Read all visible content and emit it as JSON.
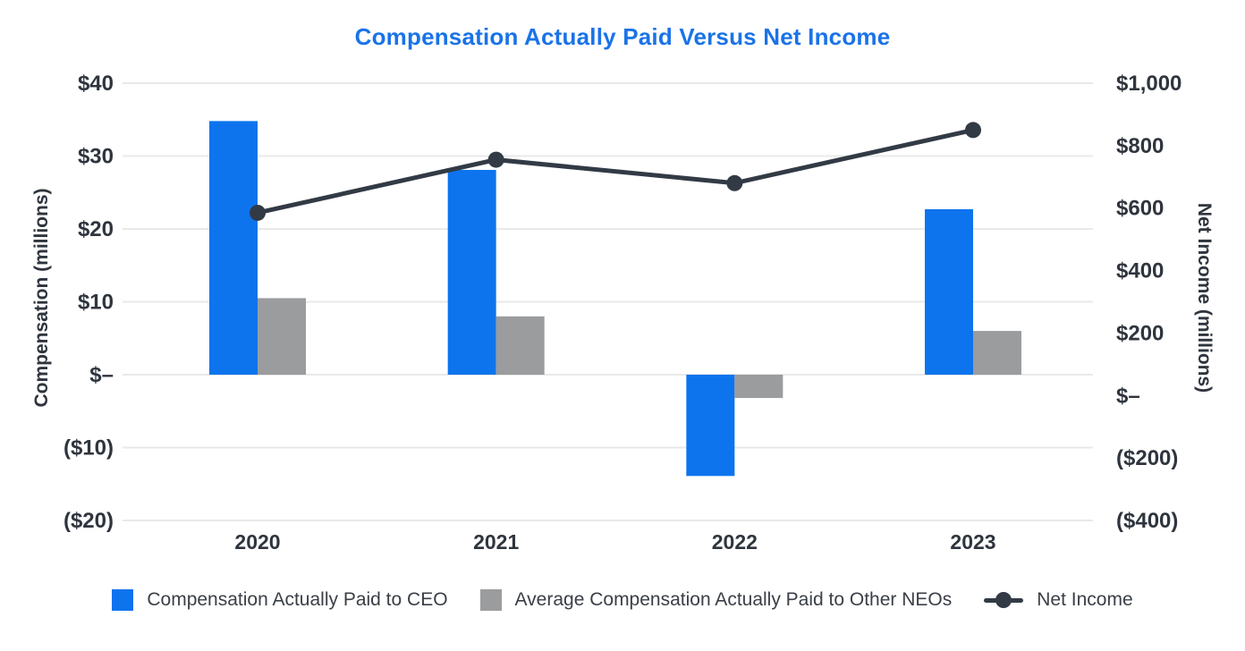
{
  "chart_data": {
    "type": "combo bar + line",
    "title": "Compensation Actually Paid Versus Net Income",
    "title_color": "#1a73e8",
    "text_color": "#2f353e",
    "grid_color": "#e9e9e9",
    "grid": "horizontal-only",
    "legend_position": "bottom",
    "categories": [
      "2020",
      "2021",
      "2022",
      "2023"
    ],
    "series": [
      {
        "name": "Compensation Actually Paid to CEO",
        "type": "bar",
        "axis": "left",
        "color": "#0d74ee",
        "values": [
          34.8,
          28.1,
          -13.9,
          22.7
        ]
      },
      {
        "name": "Average Compensation Actually Paid to Other NEOs",
        "type": "bar",
        "axis": "left",
        "color": "#9a9c9e",
        "values": [
          10.5,
          8.0,
          -3.2,
          6.0
        ]
      },
      {
        "name": "Net Income",
        "type": "line",
        "axis": "right",
        "marker": "circle",
        "color": "#323a45",
        "values": [
          585,
          755,
          680,
          850
        ]
      }
    ],
    "left_axis": {
      "title": "Compensation (millions)",
      "min": -20,
      "max": 40,
      "ticks": [
        {
          "value": 40,
          "label": "$40"
        },
        {
          "value": 30,
          "label": "$30"
        },
        {
          "value": 20,
          "label": "$20"
        },
        {
          "value": 10,
          "label": "$10"
        },
        {
          "value": 0,
          "label": "$–"
        },
        {
          "value": -10,
          "label": "($10)"
        },
        {
          "value": -20,
          "label": "($20)"
        }
      ]
    },
    "right_axis": {
      "title": "Net Income (millions)",
      "min": -400,
      "max": 1000,
      "ticks": [
        {
          "value": 1000,
          "label": "$1,000"
        },
        {
          "value": 800,
          "label": "$800"
        },
        {
          "value": 600,
          "label": "$600"
        },
        {
          "value": 400,
          "label": "$400"
        },
        {
          "value": 200,
          "label": "$200"
        },
        {
          "value": 0,
          "label": "$–"
        },
        {
          "value": -200,
          "label": "($200)"
        },
        {
          "value": -400,
          "label": "($400)"
        }
      ]
    }
  },
  "legend": {
    "items": [
      {
        "label": "Compensation Actually Paid to CEO",
        "swatch": "square",
        "color": "#0d74ee"
      },
      {
        "label": "Average Compensation Actually Paid to Other NEOs",
        "swatch": "square",
        "color": "#9a9c9e"
      },
      {
        "label": "Net Income",
        "swatch": "line-dot",
        "color": "#323a45"
      }
    ]
  }
}
